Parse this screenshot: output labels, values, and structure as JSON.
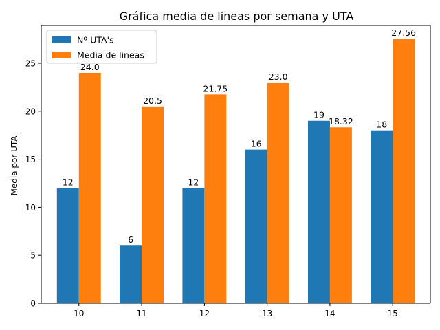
{
  "chart_data": {
    "type": "bar",
    "title": "Gráfica media de lineas por semana y UTA",
    "xlabel": "",
    "ylabel": "Media por UTA",
    "categories": [
      "10",
      "11",
      "12",
      "13",
      "14",
      "15"
    ],
    "series": [
      {
        "name": "Nº UTA's",
        "color": "#1f77b4",
        "values": [
          12,
          6,
          12,
          16,
          19,
          18
        ],
        "labels": [
          "12",
          "6",
          "12",
          "16",
          "19",
          "18"
        ]
      },
      {
        "name": "Media de lineas",
        "color": "#ff7f0e",
        "values": [
          24.0,
          20.5,
          21.75,
          23.0,
          18.32,
          27.56
        ],
        "labels": [
          "24.0",
          "20.5",
          "21.75",
          "23.0",
          "18.32",
          "27.56"
        ]
      }
    ],
    "ylim": [
      0,
      28.938
    ],
    "yticks": [
      "0",
      "5",
      "10",
      "15",
      "20",
      "25"
    ],
    "legend_position": "upper-left",
    "grid": false
  }
}
